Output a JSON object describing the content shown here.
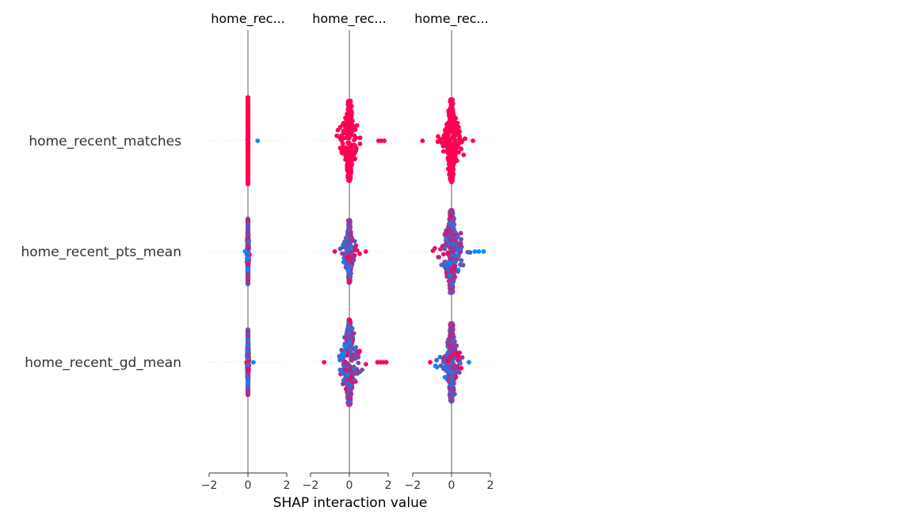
{
  "chart_data": {
    "type": "scatter",
    "subtype": "shap-interaction-beeswarm",
    "xlabel": "SHAP interaction value",
    "features": [
      "home_recent_matches",
      "home_recent_pts_mean",
      "home_recent_gd_mean"
    ],
    "panel_titles": [
      "home_rec...",
      "home_rec...",
      "home_rec..."
    ],
    "xlim": [
      -2,
      2
    ],
    "xticks": [
      -2,
      0,
      2
    ],
    "xtick_labels": [
      "−2",
      "0",
      "2"
    ],
    "colors": {
      "low": "#008bfb",
      "high": "#ff0052",
      "mid": "#b81fc0",
      "zero_line": "#999999",
      "grid": "#cccccc"
    },
    "panels": [
      {
        "title": "home_rec...",
        "rows": [
          {
            "feature": "home_recent_matches",
            "x_range": [
              -0.02,
              0.02
            ],
            "height": 1.0,
            "color_mode": "high",
            "outliers": [
              {
                "x": 0.5,
                "c": "low"
              }
            ]
          },
          {
            "feature": "home_recent_pts_mean",
            "x_range": [
              -0.08,
              0.08
            ],
            "height": 0.75,
            "color_mode": "mixed",
            "outliers": [
              {
                "x": -0.15,
                "c": "low"
              }
            ]
          },
          {
            "feature": "home_recent_gd_mean",
            "x_range": [
              -0.08,
              0.08
            ],
            "height": 0.75,
            "color_mode": "mixed",
            "outliers": [
              {
                "x": 0.28,
                "c": "low"
              }
            ]
          }
        ]
      },
      {
        "title": "home_rec...",
        "rows": [
          {
            "feature": "home_recent_matches",
            "x_range": [
              -0.9,
              0.7
            ],
            "height": 0.92,
            "color_mode": "high",
            "outliers": [
              {
                "x": 1.5,
                "c": "high"
              },
              {
                "x": 1.65,
                "c": "high"
              },
              {
                "x": 1.8,
                "c": "high"
              }
            ]
          },
          {
            "feature": "home_recent_pts_mean",
            "x_range": [
              -0.55,
              0.55
            ],
            "height": 0.72,
            "color_mode": "mixed",
            "outliers": [
              {
                "x": -0.75,
                "c": "high"
              },
              {
                "x": 0.85,
                "c": "high"
              }
            ]
          },
          {
            "feature": "home_recent_gd_mean",
            "x_range": [
              -1.0,
              0.9
            ],
            "height": 0.98,
            "color_mode": "mixed",
            "outliers": [
              {
                "x": -1.3,
                "c": "high"
              },
              {
                "x": 1.45,
                "c": "high"
              },
              {
                "x": 1.6,
                "c": "high"
              },
              {
                "x": 1.75,
                "c": "high"
              },
              {
                "x": 1.9,
                "c": "high"
              }
            ]
          }
        ]
      },
      {
        "title": "home_rec...",
        "rows": [
          {
            "feature": "home_recent_matches",
            "x_range": [
              -1.0,
              0.7
            ],
            "height": 0.95,
            "color_mode": "high",
            "outliers": [
              {
                "x": -1.5,
                "c": "high"
              },
              {
                "x": 1.1,
                "c": "high"
              }
            ]
          },
          {
            "feature": "home_recent_pts_mean",
            "x_range": [
              -1.0,
              1.0
            ],
            "height": 0.95,
            "color_mode": "mixed",
            "outliers": [
              {
                "x": 1.2,
                "c": "low"
              },
              {
                "x": 1.4,
                "c": "low"
              },
              {
                "x": 1.65,
                "c": "low"
              }
            ]
          },
          {
            "feature": "home_recent_gd_mean",
            "x_range": [
              -1.0,
              0.7
            ],
            "height": 0.9,
            "color_mode": "mixed",
            "outliers": [
              {
                "x": -1.1,
                "c": "high"
              },
              {
                "x": 0.9,
                "c": "low"
              }
            ]
          }
        ]
      }
    ]
  }
}
